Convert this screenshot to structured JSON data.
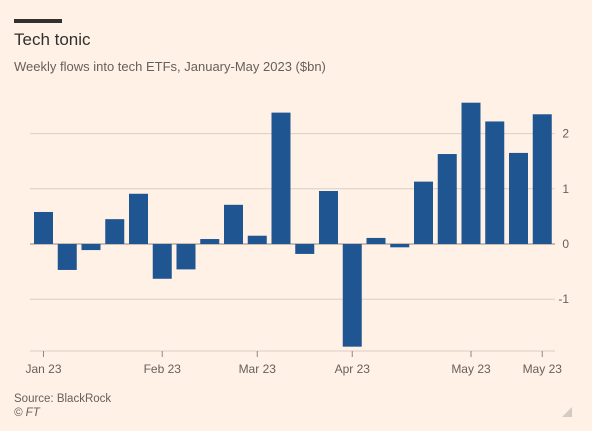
{
  "header": {
    "title": "Tech tonic",
    "subtitle": "Weekly flows into tech ETFs, January-May 2023 ($bn)"
  },
  "footer": {
    "source": "Source: BlackRock",
    "credit": "© FT"
  },
  "colors": {
    "background": "#fff1e5",
    "bar": "#1f5591",
    "grid": "#d8cfc6",
    "zero_line": "#8f8883",
    "text": "#66605c"
  },
  "chart_data": {
    "type": "bar",
    "title": "Tech tonic",
    "subtitle": "Weekly flows into tech ETFs, January-May 2023 ($bn)",
    "xlabel": "",
    "ylabel": "",
    "ylim": [
      -1.9,
      2.55
    ],
    "yticks": [
      2,
      1,
      0,
      -1
    ],
    "y_axis_side": "right",
    "grid": true,
    "x_tick_labels": [
      "Jan 23",
      "Feb 23",
      "Mar 23",
      "Apr 23",
      "May 23",
      "May 23"
    ],
    "x_tick_bar_index": [
      0,
      5,
      9,
      13,
      18,
      21
    ],
    "series": [
      {
        "values": [
          0.58,
          -0.47,
          -0.11,
          0.45,
          0.91,
          -0.63,
          -0.46,
          0.09,
          0.71,
          0.15,
          2.38,
          -0.18,
          0.96,
          -1.86,
          0.11,
          -0.06,
          1.13,
          1.63,
          2.56,
          2.22,
          1.65,
          2.35
        ]
      }
    ]
  }
}
